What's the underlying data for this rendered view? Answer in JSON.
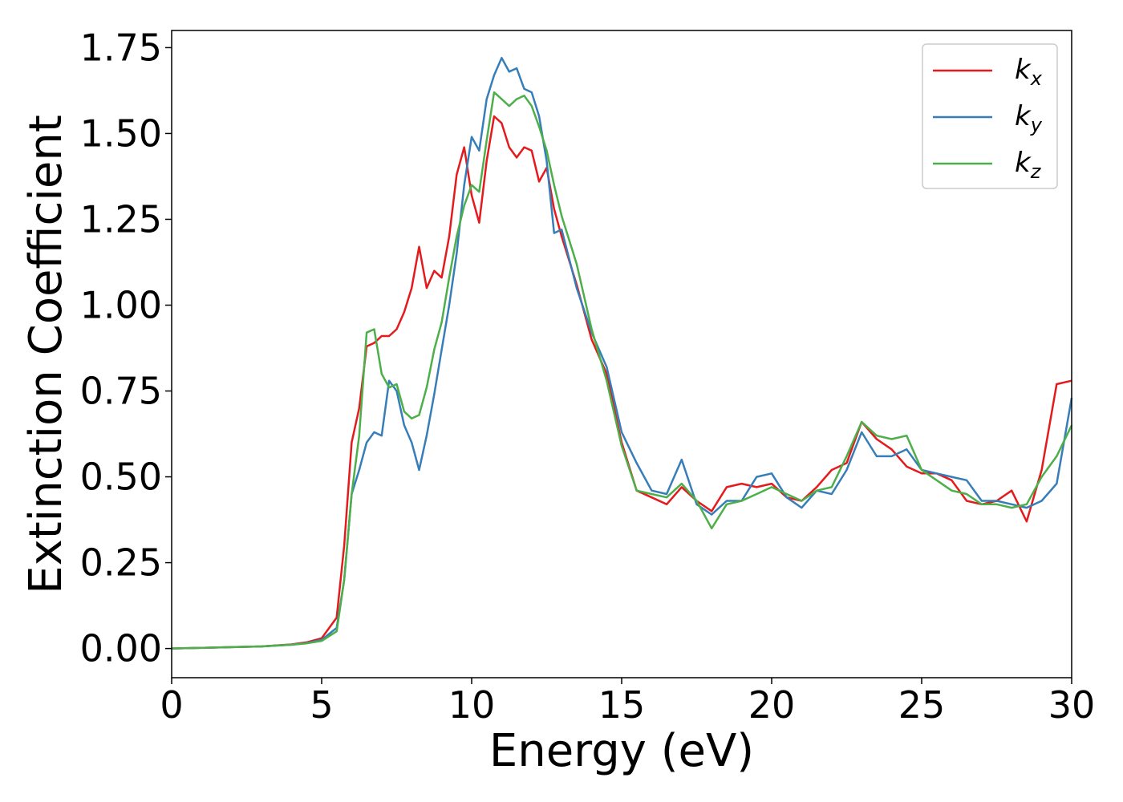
{
  "chart_data": {
    "type": "line",
    "x_label": "Energy (eV)",
    "y_label": "Extinction Coefficient",
    "x": [
      0,
      1,
      2,
      3,
      4,
      4.5,
      5,
      5.5,
      5.75,
      6,
      6.25,
      6.5,
      6.75,
      7,
      7.25,
      7.5,
      7.75,
      8,
      8.25,
      8.5,
      8.75,
      9,
      9.25,
      9.5,
      9.75,
      10,
      10.25,
      10.5,
      10.75,
      11,
      11.25,
      11.5,
      11.75,
      12,
      12.25,
      12.5,
      12.75,
      13,
      13.5,
      14,
      14.5,
      15,
      15.5,
      16,
      16.5,
      17,
      17.5,
      18,
      18.5,
      19,
      19.5,
      20,
      20.5,
      21,
      21.5,
      22,
      22.5,
      23,
      23.5,
      24,
      24.5,
      25,
      25.5,
      26,
      26.5,
      27,
      27.5,
      28,
      28.5,
      29,
      29.5,
      30
    ],
    "series": [
      {
        "name": "kx",
        "color": "#e41a1c",
        "values": [
          0,
          0.002,
          0.004,
          0.006,
          0.012,
          0.018,
          0.03,
          0.09,
          0.3,
          0.6,
          0.7,
          0.88,
          0.89,
          0.91,
          0.91,
          0.93,
          0.98,
          1.05,
          1.17,
          1.05,
          1.1,
          1.08,
          1.2,
          1.38,
          1.46,
          1.32,
          1.24,
          1.42,
          1.55,
          1.53,
          1.46,
          1.43,
          1.46,
          1.45,
          1.36,
          1.4,
          1.28,
          1.2,
          1.06,
          0.9,
          0.8,
          0.6,
          0.46,
          0.44,
          0.42,
          0.47,
          0.43,
          0.4,
          0.47,
          0.48,
          0.47,
          0.48,
          0.44,
          0.43,
          0.47,
          0.52,
          0.54,
          0.66,
          0.61,
          0.58,
          0.53,
          0.51,
          0.51,
          0.49,
          0.43,
          0.42,
          0.43,
          0.46,
          0.37,
          0.52,
          0.77,
          0.78
        ]
      },
      {
        "name": "ky",
        "color": "#377eb8",
        "values": [
          0,
          0.002,
          0.004,
          0.006,
          0.011,
          0.016,
          0.025,
          0.06,
          0.2,
          0.45,
          0.52,
          0.6,
          0.63,
          0.62,
          0.78,
          0.75,
          0.65,
          0.6,
          0.52,
          0.62,
          0.74,
          0.87,
          1.0,
          1.15,
          1.35,
          1.49,
          1.45,
          1.6,
          1.67,
          1.72,
          1.68,
          1.69,
          1.63,
          1.62,
          1.55,
          1.42,
          1.21,
          1.22,
          1.05,
          0.92,
          0.82,
          0.63,
          0.54,
          0.46,
          0.45,
          0.55,
          0.42,
          0.39,
          0.43,
          0.43,
          0.5,
          0.51,
          0.44,
          0.41,
          0.46,
          0.45,
          0.52,
          0.63,
          0.56,
          0.56,
          0.58,
          0.52,
          0.51,
          0.5,
          0.49,
          0.43,
          0.43,
          0.42,
          0.41,
          0.43,
          0.48,
          0.73
        ]
      },
      {
        "name": "kz",
        "color": "#4daf4a",
        "values": [
          0,
          0.002,
          0.004,
          0.006,
          0.011,
          0.015,
          0.022,
          0.05,
          0.2,
          0.45,
          0.62,
          0.92,
          0.93,
          0.8,
          0.76,
          0.77,
          0.69,
          0.67,
          0.68,
          0.76,
          0.87,
          0.95,
          1.08,
          1.2,
          1.29,
          1.35,
          1.33,
          1.48,
          1.62,
          1.6,
          1.58,
          1.6,
          1.61,
          1.58,
          1.52,
          1.45,
          1.35,
          1.26,
          1.12,
          0.93,
          0.78,
          0.59,
          0.46,
          0.45,
          0.44,
          0.48,
          0.43,
          0.35,
          0.42,
          0.43,
          0.45,
          0.47,
          0.45,
          0.43,
          0.46,
          0.47,
          0.56,
          0.66,
          0.62,
          0.61,
          0.62,
          0.52,
          0.49,
          0.46,
          0.45,
          0.42,
          0.42,
          0.41,
          0.42,
          0.5,
          0.56,
          0.65
        ]
      }
    ],
    "xlim": [
      0,
      30
    ],
    "xticks": [
      0,
      5,
      10,
      15,
      20,
      25,
      30
    ],
    "ylim": [
      -0.085,
      1.8
    ],
    "yticks": [
      {
        "value": 0,
        "label": "0.00"
      },
      0.25,
      {
        "value": 0.5,
        "label": "0.50"
      },
      0.75,
      {
        "value": 1,
        "label": "1.00"
      },
      1.25,
      {
        "value": 1.5,
        "label": "1.50"
      },
      1.75
    ],
    "legend": "upper right"
  }
}
